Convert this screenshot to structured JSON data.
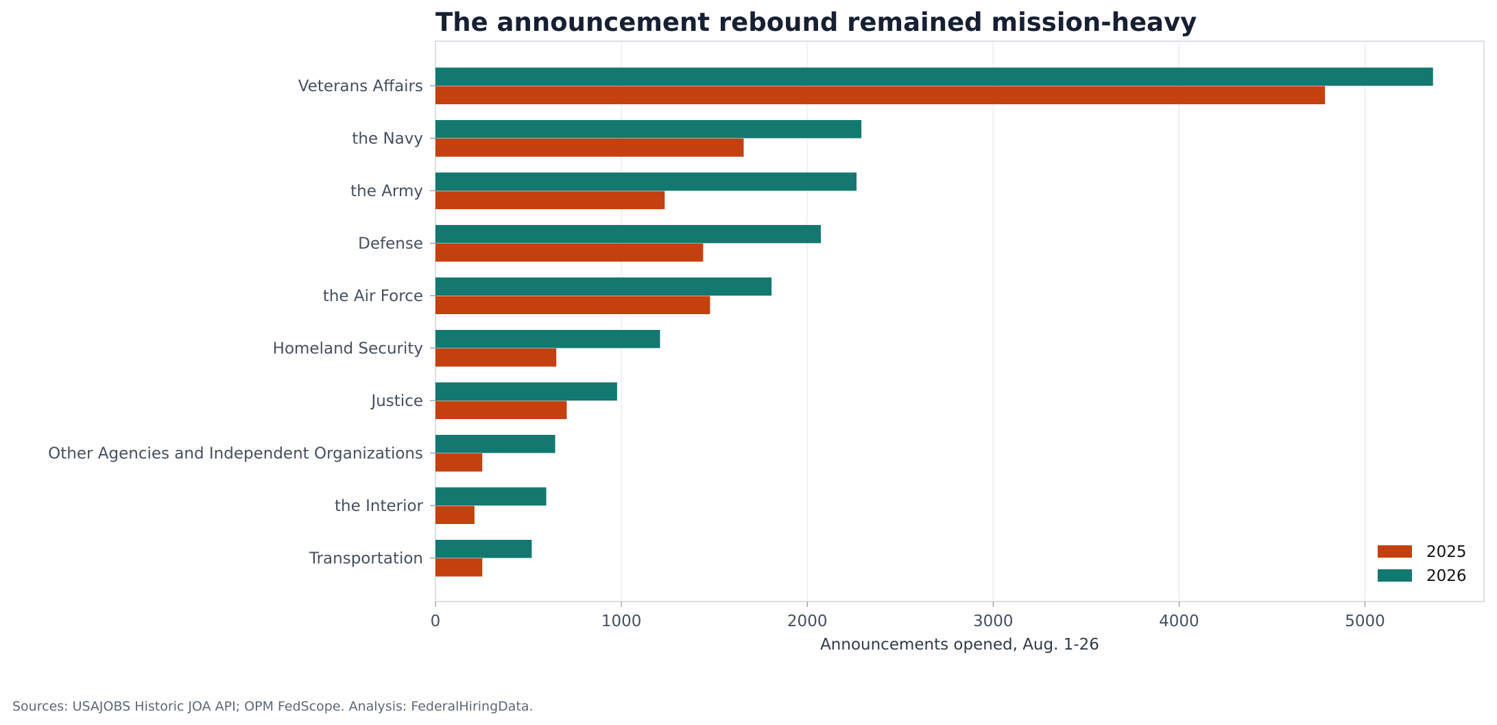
{
  "chart_data": {
    "type": "bar",
    "orientation": "horizontal",
    "title": "The announcement rebound remained mission-heavy",
    "xlabel": "Announcements opened, Aug. 1-26",
    "ylabel": "",
    "xlim": [
      0,
      5640
    ],
    "xticks": [
      0,
      1000,
      2000,
      3000,
      4000,
      5000
    ],
    "grid": "vertical",
    "legend_position": "lower-right",
    "categories": [
      "Veterans Affairs",
      "the Navy",
      "the Army",
      "Defense",
      "the Air Force",
      "Homeland Security",
      "Justice",
      "Other Agencies and Independent Organizations",
      "the Interior",
      "Transportation"
    ],
    "series": [
      {
        "name": "2025",
        "color": "#c4410f",
        "values": [
          4785,
          1658,
          1233,
          1440,
          1477,
          650,
          706,
          252,
          210,
          252
        ]
      },
      {
        "name": "2026",
        "color": "#137870",
        "values": [
          5366,
          2291,
          2265,
          2073,
          1808,
          1208,
          977,
          644,
          596,
          518
        ]
      }
    ],
    "source_note": "Sources: USAJOBS Historic JOA API; OPM FedScope. Analysis: FederalHiringData."
  }
}
